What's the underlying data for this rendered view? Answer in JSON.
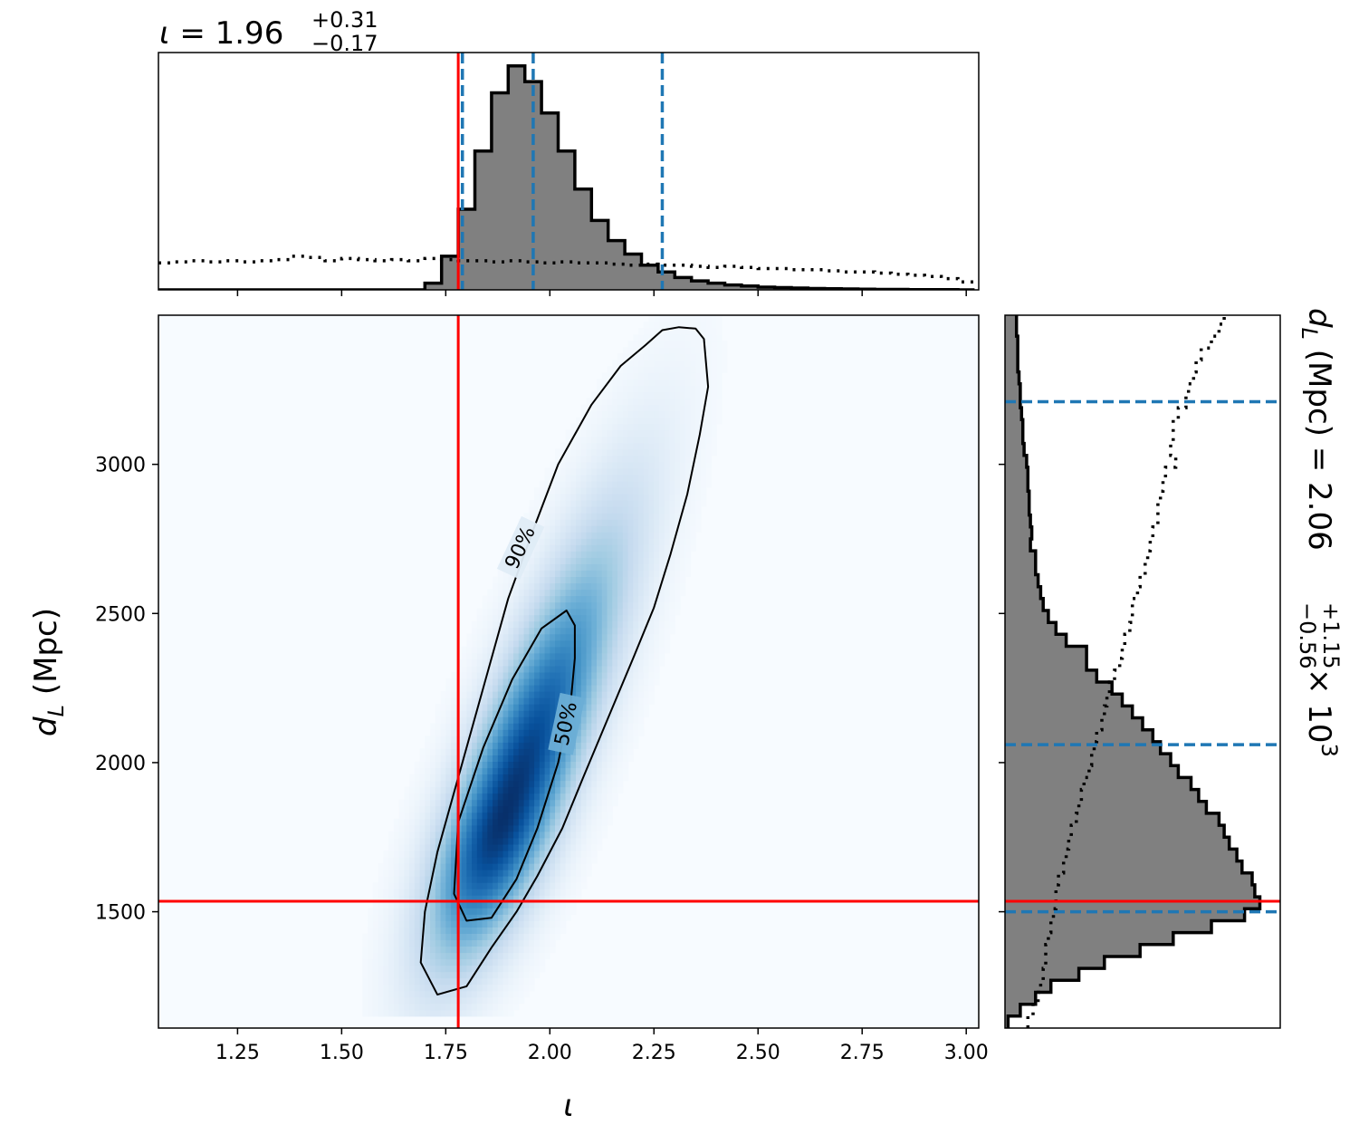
{
  "colors": {
    "truth": "#ff0000",
    "quantile": "#1f77b4",
    "hist_fill": "#808080",
    "hist_edge": "#000000",
    "density_low": "#f7fbff",
    "density_high": "#08306b"
  },
  "chart_data": [
    {
      "type": "heatmap",
      "panel": "joint",
      "xlabel_symbol": "ι",
      "ylabel_main": "d",
      "ylabel_sub": "L",
      "ylabel_unit": " (Mpc)",
      "xlim": [
        1.06,
        3.03
      ],
      "ylim": [
        1110,
        3500
      ],
      "xticks": [
        1.25,
        1.5,
        1.75,
        2.0,
        2.25,
        2.5,
        2.75,
        3.0
      ],
      "xtick_labels": [
        "1.25",
        "1.50",
        "1.75",
        "2.00",
        "2.25",
        "2.50",
        "2.75",
        "3.00"
      ],
      "yticks": [
        1500,
        2000,
        2500,
        3000
      ],
      "ytick_labels": [
        "1500",
        "2000",
        "2500",
        "3000"
      ],
      "truth": {
        "iota": 1.78,
        "dL": 1535
      },
      "density_peak": {
        "iota": 1.89,
        "dL": 1820
      },
      "contours": [
        {
          "label": "90%",
          "label_at": {
            "iota": 1.93,
            "dL": 2720
          },
          "label_angle": -65,
          "points": [
            [
              2.31,
              3460
            ],
            [
              2.35,
              3455
            ],
            [
              2.37,
              3420
            ],
            [
              2.38,
              3260
            ],
            [
              2.36,
              3100
            ],
            [
              2.33,
              2900
            ],
            [
              2.29,
              2700
            ],
            [
              2.25,
              2520
            ],
            [
              2.2,
              2350
            ],
            [
              2.14,
              2150
            ],
            [
              2.08,
              1950
            ],
            [
              2.03,
              1780
            ],
            [
              1.97,
              1620
            ],
            [
              1.92,
              1500
            ],
            [
              1.86,
              1380
            ],
            [
              1.8,
              1250
            ],
            [
              1.73,
              1222
            ],
            [
              1.69,
              1330
            ],
            [
              1.7,
              1500
            ],
            [
              1.73,
              1700
            ],
            [
              1.78,
              1950
            ],
            [
              1.84,
              2250
            ],
            [
              1.9,
              2550
            ],
            [
              1.96,
              2780
            ],
            [
              2.02,
              3000
            ],
            [
              2.1,
              3200
            ],
            [
              2.17,
              3330
            ],
            [
              2.23,
              3400
            ],
            [
              2.27,
              3450
            ]
          ]
        },
        {
          "label": "50%",
          "label_at": {
            "iota": 2.04,
            "dL": 2130
          },
          "label_angle": -78,
          "points": [
            [
              2.04,
              2510
            ],
            [
              2.06,
              2460
            ],
            [
              2.06,
              2350
            ],
            [
              2.05,
              2200
            ],
            [
              2.02,
              2000
            ],
            [
              1.97,
              1780
            ],
            [
              1.92,
              1610
            ],
            [
              1.86,
              1480
            ],
            [
              1.8,
              1470
            ],
            [
              1.77,
              1560
            ],
            [
              1.78,
              1800
            ],
            [
              1.84,
              2050
            ],
            [
              1.91,
              2280
            ],
            [
              1.98,
              2450
            ]
          ]
        }
      ]
    },
    {
      "type": "histogram",
      "panel": "top",
      "title_symbol": "ι",
      "title_value": " = 1.96",
      "title_plus": "+0.31",
      "title_minus": "−0.17",
      "bin_edges": [
        1.06,
        1.1,
        1.14,
        1.18,
        1.22,
        1.26,
        1.3,
        1.34,
        1.38,
        1.42,
        1.46,
        1.5,
        1.54,
        1.58,
        1.62,
        1.66,
        1.7,
        1.74,
        1.78,
        1.82,
        1.86,
        1.9,
        1.94,
        1.98,
        2.02,
        2.06,
        2.1,
        2.14,
        2.18,
        2.22,
        2.26,
        2.3,
        2.34,
        2.38,
        2.42,
        2.46,
        2.5,
        2.54,
        2.58,
        2.62,
        2.66,
        2.7,
        2.74,
        2.78,
        2.82,
        2.86,
        2.9,
        2.94,
        2.98,
        3.02
      ],
      "posterior": [
        0,
        0,
        0,
        0,
        0,
        0,
        0,
        0,
        0,
        0,
        0,
        0,
        0,
        0,
        0,
        0,
        0.3,
        1.5,
        3.6,
        6.2,
        8.8,
        10,
        9.3,
        7.9,
        6.2,
        4.5,
        3.1,
        2.2,
        1.6,
        1.1,
        0.8,
        0.55,
        0.4,
        0.3,
        0.22,
        0.17,
        0.12,
        0.1,
        0.08,
        0.06,
        0.05,
        0.04,
        0.03,
        0.02,
        0.02,
        0.01,
        0.01,
        0.01,
        0
      ],
      "prior": [
        1.2,
        1.25,
        1.3,
        1.25,
        1.3,
        1.25,
        1.3,
        1.35,
        1.5,
        1.45,
        1.3,
        1.4,
        1.35,
        1.3,
        1.35,
        1.3,
        1.4,
        1.35,
        1.3,
        1.3,
        1.25,
        1.3,
        1.25,
        1.2,
        1.25,
        1.2,
        1.2,
        1.15,
        1.1,
        1.15,
        1.1,
        1.1,
        1.05,
        1.0,
        1.05,
        1.0,
        0.95,
        0.95,
        0.9,
        0.9,
        0.85,
        0.8,
        0.8,
        0.75,
        0.7,
        0.65,
        0.6,
        0.5,
        0.35
      ],
      "ymax": 10.6,
      "quantiles": [
        1.79,
        1.96,
        2.27
      ],
      "truth": 1.78
    },
    {
      "type": "histogram",
      "panel": "right",
      "orientation": "horizontal",
      "label_main": "d",
      "label_sub": "L",
      "label_unit": " (Mpc) = 2.06",
      "label_plus": "+1.15",
      "label_minus": "−0.56",
      "label_scale": " × 10",
      "label_exp": "3",
      "bin_edges": [
        1110,
        1150,
        1190,
        1230,
        1270,
        1310,
        1350,
        1390,
        1430,
        1470,
        1510,
        1550,
        1590,
        1630,
        1670,
        1710,
        1750,
        1790,
        1830,
        1870,
        1910,
        1950,
        1990,
        2030,
        2070,
        2110,
        2150,
        2190,
        2230,
        2270,
        2310,
        2350,
        2390,
        2430,
        2470,
        2510,
        2550,
        2590,
        2630,
        2670,
        2710,
        2750,
        2790,
        2830,
        2870,
        2910,
        2950,
        2990,
        3030,
        3070,
        3110,
        3150,
        3190,
        3230,
        3270,
        3310,
        3350,
        3390,
        3430,
        3470,
        3510
      ],
      "posterior": [
        0.12,
        0.6,
        1.2,
        1.8,
        2.9,
        3.9,
        5.3,
        6.6,
        8.1,
        9.4,
        10,
        9.8,
        9.7,
        9.3,
        9.1,
        8.8,
        8.6,
        8.4,
        7.9,
        7.6,
        7.3,
        6.8,
        6.5,
        6.1,
        5.8,
        5.4,
        5.0,
        4.6,
        4.2,
        3.6,
        3.2,
        3.2,
        2.4,
        2.0,
        1.7,
        1.5,
        1.4,
        1.3,
        1.2,
        1.2,
        1.0,
        1.05,
        1.0,
        0.95,
        0.95,
        0.9,
        0.9,
        0.85,
        0.75,
        0.7,
        0.7,
        0.65,
        0.6,
        0.6,
        0.55,
        0.5,
        0.5,
        0.5,
        0.45,
        0.45
      ],
      "prior": [
        0.9,
        1.1,
        1.3,
        1.4,
        1.5,
        1.6,
        1.6,
        1.7,
        1.8,
        1.9,
        2.0,
        2.0,
        2.1,
        2.3,
        2.4,
        2.5,
        2.6,
        2.8,
        2.9,
        3.0,
        3.1,
        3.3,
        3.4,
        3.5,
        3.6,
        3.8,
        3.9,
        4.0,
        4.1,
        4.3,
        4.5,
        4.6,
        4.7,
        4.9,
        5.0,
        5.0,
        5.2,
        5.3,
        5.5,
        5.6,
        5.7,
        5.8,
        6.0,
        6.0,
        6.1,
        6.2,
        6.3,
        6.7,
        6.5,
        6.6,
        6.6,
        6.8,
        7.1,
        7.2,
        7.4,
        7.5,
        7.7,
        8.1,
        8.4,
        8.6
      ],
      "xmax": 10.8,
      "quantiles": [
        1500,
        2060,
        3210
      ],
      "truth": 1535
    }
  ]
}
